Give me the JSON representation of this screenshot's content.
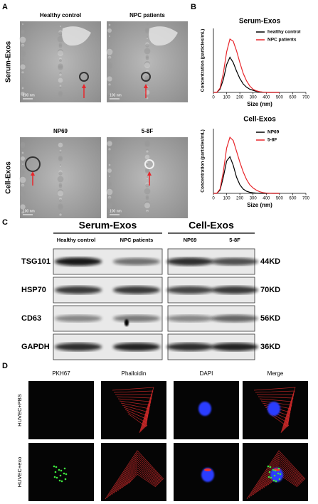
{
  "panels": {
    "a": {
      "label": "A",
      "row_labels": [
        "Serum-Exos",
        "Cell-Exos"
      ],
      "captions": [
        "Healthy control",
        "NPC patients",
        "NP69",
        "5-8F"
      ],
      "scale_bar": "100 nm"
    },
    "b": {
      "label": "B"
    },
    "c": {
      "label": "C",
      "groups": [
        "Serum-Exos",
        "Cell-Exos"
      ],
      "lanes": [
        "Healthy control",
        "NPC patients",
        "NP69",
        "5-8F"
      ],
      "proteins": [
        "TSG101",
        "HSP70",
        "CD63",
        "GAPDH"
      ],
      "sizes": [
        "44KD",
        "70KD",
        "56KD",
        "36KD"
      ]
    },
    "d": {
      "label": "D",
      "columns": [
        "PKH67",
        "Phalloidin",
        "DAPI",
        "Merge"
      ],
      "rows": [
        "HUVEC+PBS",
        "HUVEC+exo"
      ]
    }
  },
  "chart_data": [
    {
      "type": "line",
      "title": "Serum-Exos",
      "x_label": "Size (nm)",
      "y_label": "Concentration (particles/mL)",
      "x": [
        0,
        25,
        50,
        75,
        100,
        125,
        150,
        175,
        200,
        225,
        250,
        275,
        300,
        325,
        350,
        375,
        400,
        425,
        450,
        475,
        500
      ],
      "series": [
        {
          "name": "healthy control",
          "color": "#000000",
          "values": [
            0,
            0,
            0.3,
            1.2,
            2.6,
            3.3,
            2.8,
            2.0,
            1.3,
            0.8,
            0.5,
            0.3,
            0.2,
            0.1,
            0.05,
            0.02,
            0,
            0,
            0,
            0,
            0
          ]
        },
        {
          "name": "NPC patients",
          "color": "#e8262b",
          "values": [
            0,
            0,
            0.4,
            1.8,
            3.8,
            5.0,
            4.8,
            3.9,
            2.8,
            1.8,
            1.1,
            0.6,
            0.3,
            0.15,
            0.07,
            0.03,
            0.01,
            0,
            0,
            0,
            0
          ]
        }
      ],
      "xlim": [
        0,
        700
      ],
      "xticks": [
        0,
        100,
        200,
        300,
        400,
        500,
        600,
        700
      ],
      "ylim": [
        0,
        6
      ],
      "legend": "upper right"
    },
    {
      "type": "line",
      "title": "Cell-Exos",
      "x_label": "Size (nm)",
      "y_label": "Concentration (particles/mL)",
      "x": [
        0,
        25,
        50,
        75,
        100,
        125,
        150,
        175,
        200,
        225,
        250,
        275,
        300,
        325,
        350,
        375,
        400,
        425,
        450,
        475,
        500
      ],
      "series": [
        {
          "name": "NP69",
          "color": "#000000",
          "values": [
            0,
            0,
            0.3,
            1.5,
            3.0,
            3.4,
            2.6,
            1.5,
            0.8,
            0.4,
            0.2,
            0.1,
            0.05,
            0.02,
            0,
            0,
            0,
            0,
            0,
            0,
            0
          ]
        },
        {
          "name": "5-8F",
          "color": "#e8262b",
          "values": [
            0,
            0,
            0.4,
            2.0,
            4.2,
            5.2,
            4.9,
            3.9,
            2.9,
            2.0,
            1.3,
            0.8,
            0.5,
            0.3,
            0.15,
            0.07,
            0.03,
            0.01,
            0,
            0,
            0
          ]
        }
      ],
      "xlim": [
        0,
        700
      ],
      "xticks": [
        0,
        100,
        200,
        300,
        400,
        500,
        600,
        700
      ],
      "ylim": [
        0,
        6
      ],
      "legend": "upper right"
    }
  ]
}
